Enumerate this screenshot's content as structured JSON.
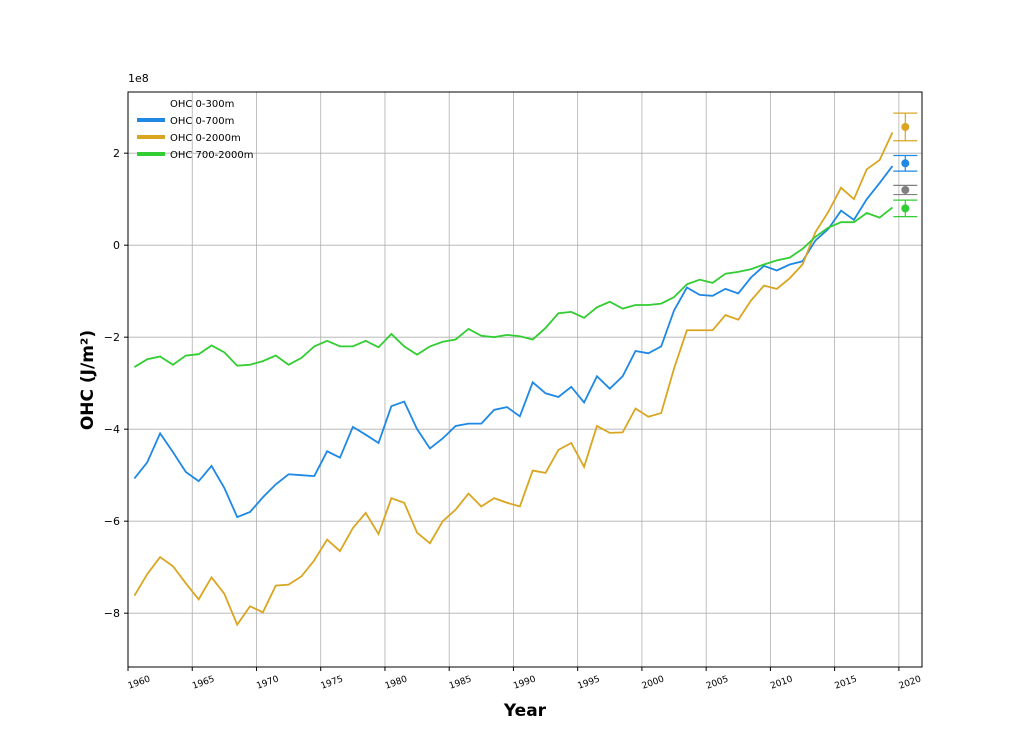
{
  "chart_data": {
    "type": "line",
    "x_label": "Year",
    "y_label": "OHC (J/m²)",
    "y_offset_label": "1e8",
    "xlim": [
      1960,
      2021.8
    ],
    "ylim": [
      -9.17,
      3.33
    ],
    "xticks": [
      1960,
      1965,
      1970,
      1975,
      1980,
      1985,
      1990,
      1995,
      2000,
      2005,
      2010,
      2015,
      2020
    ],
    "yticks": [
      {
        "value": -8,
        "label": "−8"
      },
      {
        "value": -6,
        "label": "−6"
      },
      {
        "value": -4,
        "label": "−4"
      },
      {
        "value": -2,
        "label": "−2"
      },
      0,
      2
    ],
    "grid": true,
    "legend": "upper left",
    "x": [
      1960.5,
      1961.5,
      1962.5,
      1963.5,
      1964.5,
      1965.5,
      1966.5,
      1967.5,
      1968.5,
      1969.5,
      1970.5,
      1971.5,
      1972.5,
      1973.5,
      1974.5,
      1975.5,
      1976.5,
      1977.5,
      1978.5,
      1979.5,
      1980.5,
      1981.5,
      1982.5,
      1983.5,
      1984.5,
      1985.5,
      1986.5,
      1987.5,
      1988.5,
      1989.5,
      1990.5,
      1991.5,
      1992.5,
      1993.5,
      1994.5,
      1995.5,
      1996.5,
      1997.5,
      1998.5,
      1999.5,
      2000.5,
      2001.5,
      2002.5,
      2003.5,
      2004.5,
      2005.5,
      2006.5,
      2007.5,
      2008.5,
      2009.5,
      2010.5,
      2011.5,
      2012.5,
      2013.5,
      2014.5,
      2015.5,
      2016.5,
      2017.5,
      2018.5,
      2019.5
    ],
    "series": [
      {
        "name": "OHC 0-300m",
        "color": "#ffffff",
        "point_color": "#808080",
        "point": {
          "x": 2020.5,
          "value": 1.2,
          "error": 0.1
        }
      },
      {
        "name": "OHC 0-700m",
        "color": "#1e88e5",
        "point_color": "#1e88e5",
        "values": [
          -5.07,
          -4.72,
          -4.09,
          -4.5,
          -4.93,
          -5.13,
          -4.8,
          -5.28,
          -5.91,
          -5.8,
          -5.48,
          -5.2,
          -4.98,
          -5.0,
          -5.02,
          -4.48,
          -4.62,
          -3.95,
          -4.12,
          -4.3,
          -3.5,
          -3.4,
          -4.0,
          -4.42,
          -4.2,
          -3.93,
          -3.88,
          -3.88,
          -3.58,
          -3.52,
          -3.72,
          -2.98,
          -3.22,
          -3.3,
          -3.08,
          -3.42,
          -2.85,
          -3.12,
          -2.85,
          -2.3,
          -2.35,
          -2.2,
          -1.42,
          -0.92,
          -1.08,
          -1.1,
          -0.95,
          -1.05,
          -0.7,
          -0.45,
          -0.55,
          -0.42,
          -0.35,
          0.1,
          0.35,
          0.75,
          0.55,
          1.0,
          1.35,
          1.72
        ],
        "point": {
          "x": 2020.5,
          "value": 1.78,
          "error": 0.17
        }
      },
      {
        "name": "OHC 0-2000m",
        "color": "#daa520",
        "point_color": "#daa520",
        "values": [
          -7.62,
          -7.15,
          -6.78,
          -6.98,
          -7.35,
          -7.7,
          -7.22,
          -7.58,
          -8.25,
          -7.85,
          -7.98,
          -7.4,
          -7.38,
          -7.2,
          -6.85,
          -6.4,
          -6.65,
          -6.15,
          -5.82,
          -6.28,
          -5.5,
          -5.6,
          -6.25,
          -6.48,
          -6.0,
          -5.75,
          -5.4,
          -5.68,
          -5.5,
          -5.6,
          -5.68,
          -4.9,
          -4.95,
          -4.45,
          -4.3,
          -4.82,
          -3.93,
          -4.08,
          -4.07,
          -3.55,
          -3.73,
          -3.65,
          -2.68,
          -1.85,
          -1.85,
          -1.85,
          -1.52,
          -1.62,
          -1.2,
          -0.88,
          -0.95,
          -0.72,
          -0.42,
          0.28,
          0.72,
          1.25,
          1.0,
          1.65,
          1.85,
          2.45
        ],
        "point": {
          "x": 2020.5,
          "value": 2.57,
          "error": 0.3
        }
      },
      {
        "name": "OHC 700-2000m",
        "color": "#32cd32",
        "point_color": "#32cd32",
        "values": [
          -2.65,
          -2.48,
          -2.42,
          -2.6,
          -2.4,
          -2.37,
          -2.18,
          -2.33,
          -2.62,
          -2.6,
          -2.52,
          -2.4,
          -2.6,
          -2.45,
          -2.2,
          -2.08,
          -2.2,
          -2.2,
          -2.08,
          -2.22,
          -1.93,
          -2.2,
          -2.38,
          -2.2,
          -2.1,
          -2.05,
          -1.82,
          -1.97,
          -2.0,
          -1.95,
          -1.98,
          -2.05,
          -1.8,
          -1.48,
          -1.45,
          -1.58,
          -1.35,
          -1.23,
          -1.38,
          -1.3,
          -1.3,
          -1.27,
          -1.13,
          -0.85,
          -0.75,
          -0.82,
          -0.62,
          -0.58,
          -0.52,
          -0.42,
          -0.33,
          -0.27,
          -0.08,
          0.18,
          0.38,
          0.5,
          0.5,
          0.7,
          0.6,
          0.82
        ],
        "point": {
          "x": 2020.5,
          "value": 0.8,
          "error": 0.18
        }
      }
    ]
  }
}
